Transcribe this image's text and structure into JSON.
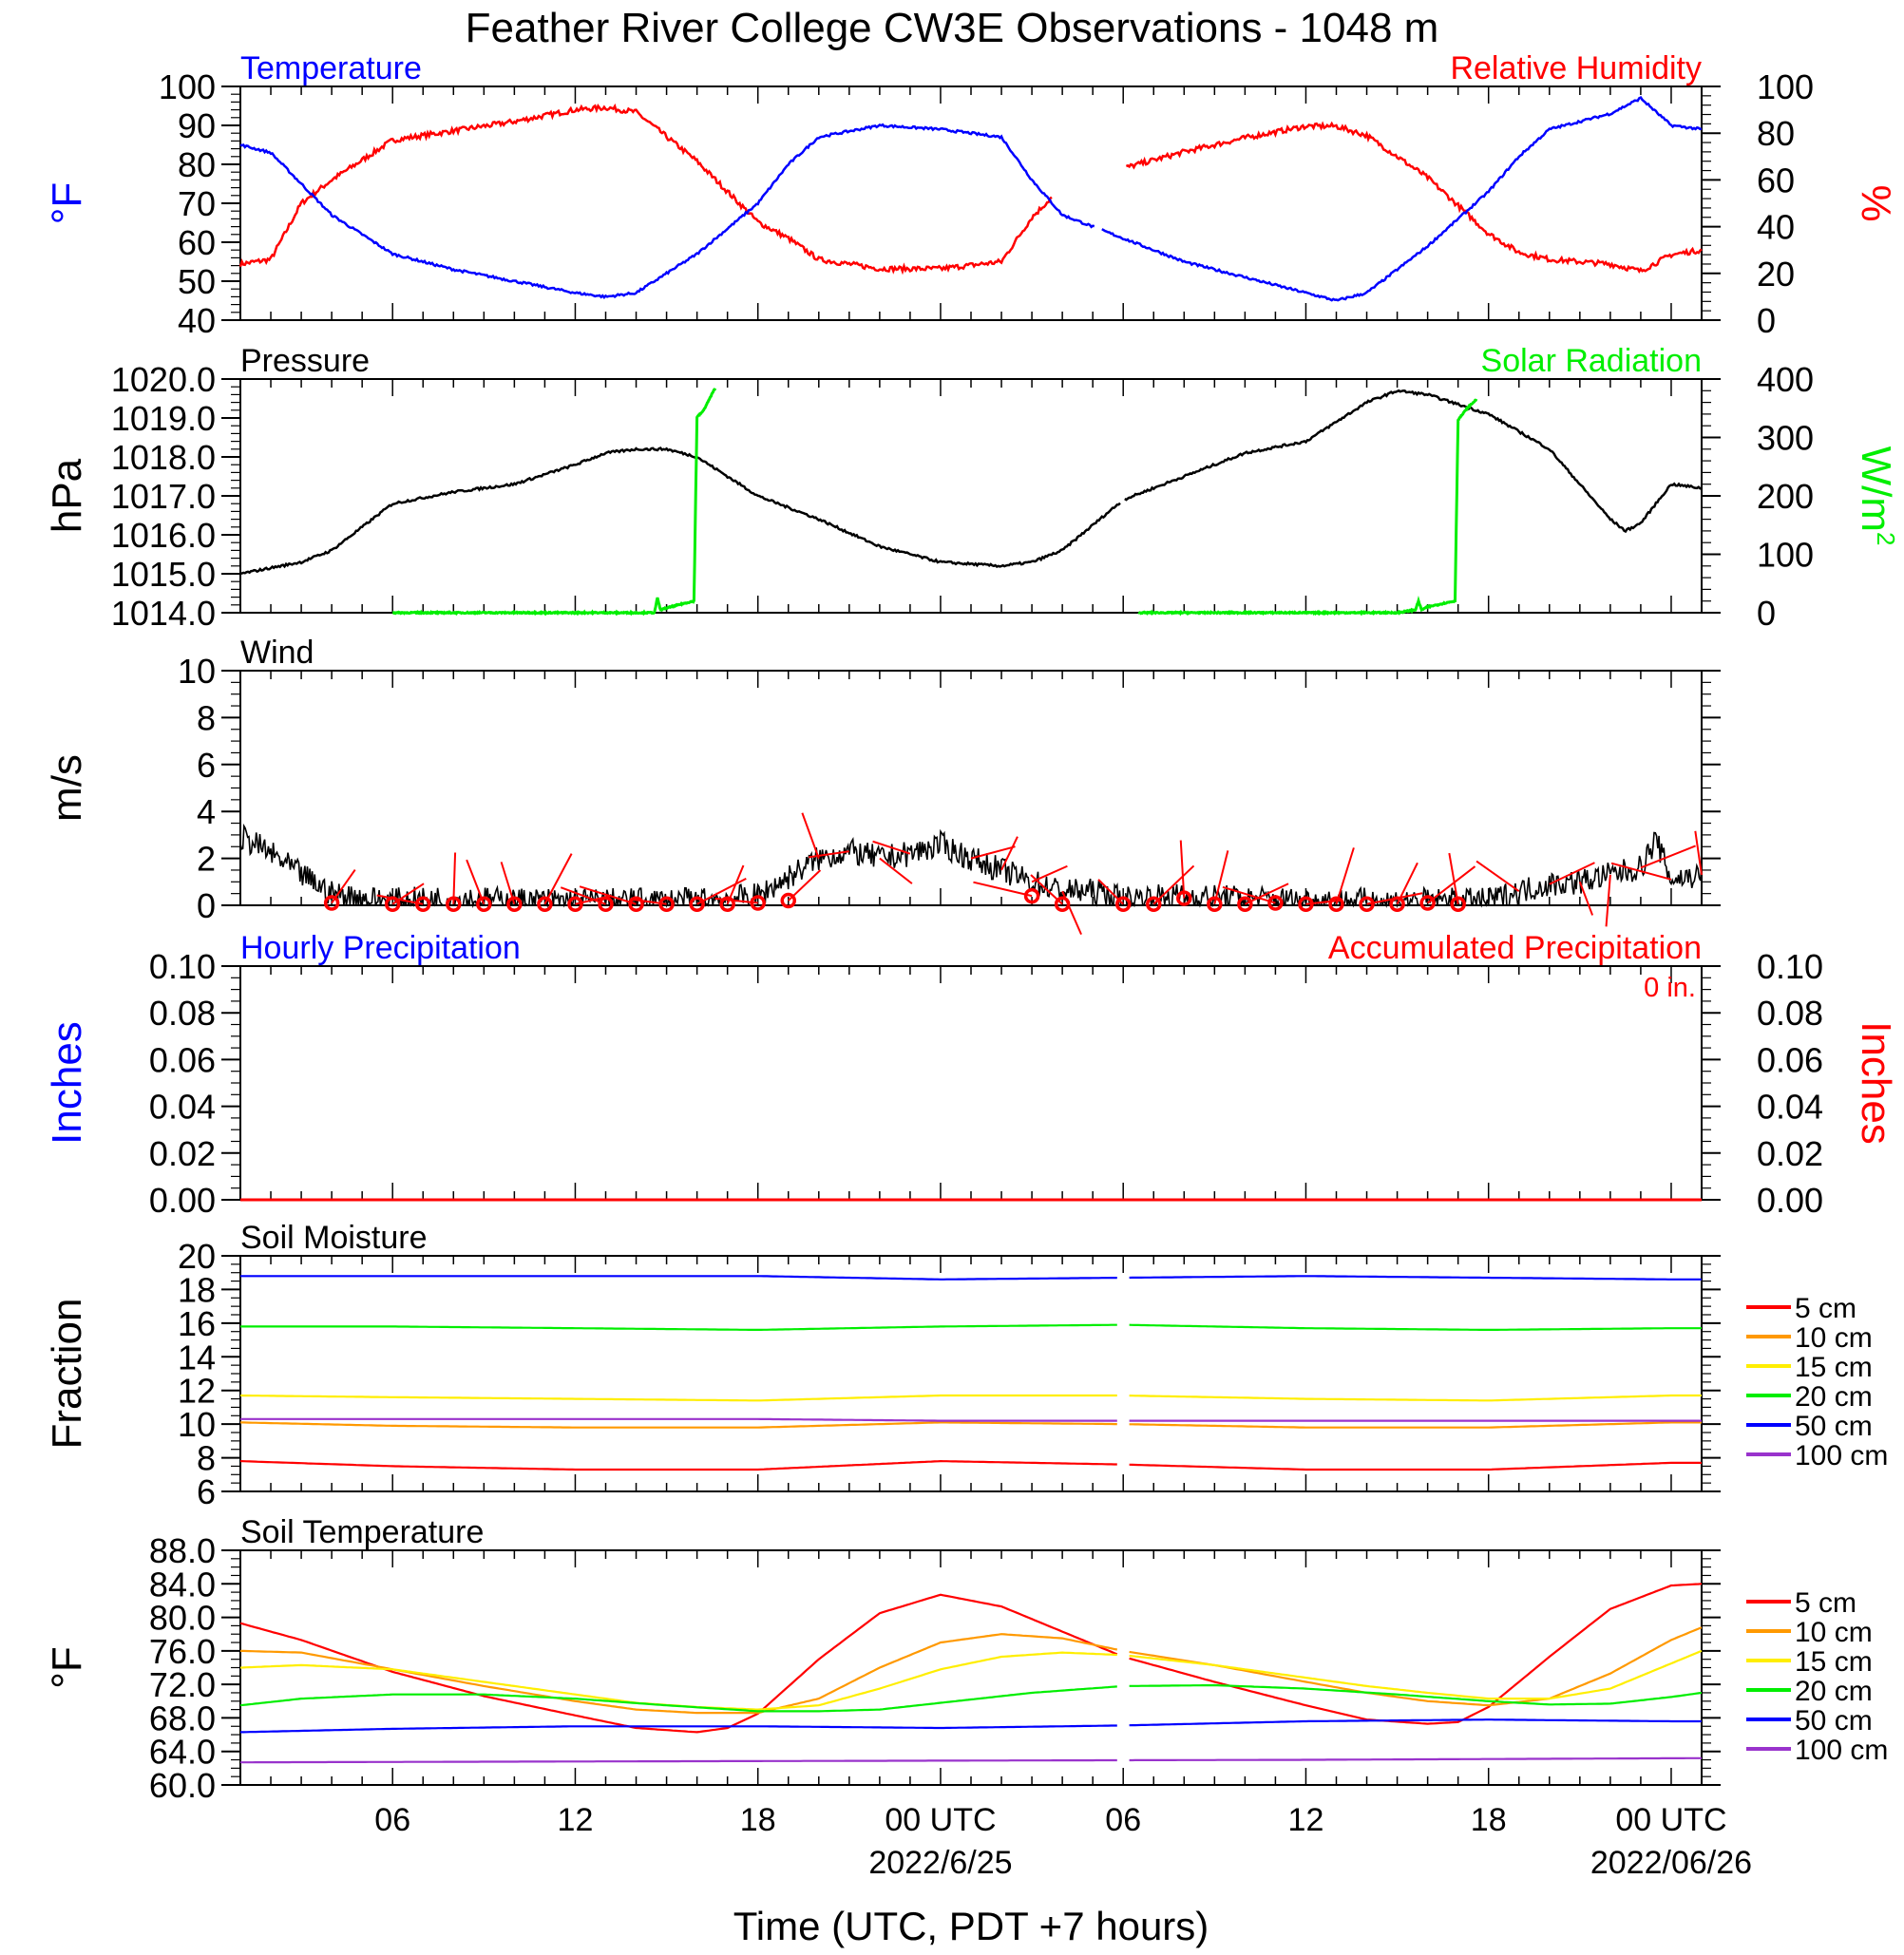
{
  "title": "Feather River College CW3E Observations - 1048 m",
  "xlabel": "Time (UTC, PDT +7 hours)",
  "x_ticks": [
    {
      "hour": 6,
      "label": "06",
      "date": ""
    },
    {
      "hour": 12,
      "label": "12",
      "date": ""
    },
    {
      "hour": 18,
      "label": "18",
      "date": ""
    },
    {
      "hour": 24,
      "label": "00 UTC",
      "date": "2022/6/25"
    },
    {
      "hour": 30,
      "label": "06",
      "date": ""
    },
    {
      "hour": 36,
      "label": "12",
      "date": ""
    },
    {
      "hour": 42,
      "label": "18",
      "date": ""
    },
    {
      "hour": 48,
      "label": "00 UTC",
      "date": "2022/06/26"
    }
  ],
  "chart_data": [
    {
      "type": "line",
      "panel": "temperature_rh",
      "title_left": "Temperature",
      "title_right": "Relative Humidity",
      "ylabel_left": "°F",
      "ylabel_right": "%",
      "ylim_left": [
        40,
        100
      ],
      "ylim_right": [
        0,
        100
      ],
      "yticks_left": [
        "100",
        "90",
        "80",
        "70",
        "60",
        "50",
        "40"
      ],
      "yticks_right": [
        "100",
        "80",
        "60",
        "40",
        "20",
        "0"
      ],
      "colors": {
        "left": "#0000ff",
        "right": "#ff0000"
      },
      "series": [
        {
          "name": "Temperature",
          "axis": "left",
          "x": [
            1,
            2,
            3,
            4,
            6,
            8,
            10,
            12,
            13,
            14,
            16,
            18,
            19,
            20,
            22,
            24,
            26,
            27,
            28,
            30,
            32,
            34,
            36,
            37,
            38,
            40,
            42,
            43,
            44,
            46,
            47,
            48,
            49
          ],
          "y": [
            85,
            83,
            75,
            67,
            57,
            53,
            50,
            47,
            46,
            47,
            57,
            70,
            80,
            87,
            90,
            89,
            87,
            76,
            67,
            61,
            55,
            51,
            47,
            45,
            47,
            59,
            73,
            82,
            89,
            93,
            97,
            90,
            89
          ]
        },
        {
          "name": "Relative Humidity",
          "axis": "right",
          "x": [
            1,
            2,
            3,
            4,
            6,
            8,
            10,
            12,
            13,
            14,
            16,
            18,
            19,
            20,
            22,
            24,
            26,
            27,
            28,
            30,
            32,
            34,
            36,
            37,
            38,
            40,
            42,
            43,
            44,
            46,
            47,
            48,
            49
          ],
          "y": [
            24,
            26,
            50,
            60,
            77,
            81,
            85,
            90,
            91,
            89,
            68,
            42,
            35,
            26,
            22,
            22,
            25,
            44,
            57,
            65,
            72,
            78,
            83,
            83,
            79,
            61,
            37,
            29,
            26,
            24,
            21,
            28,
            30
          ]
        }
      ]
    },
    {
      "type": "line",
      "panel": "pressure_solar",
      "title_left": "Pressure",
      "title_right": "Solar Radiation",
      "ylabel_left": "hPa",
      "ylabel_right": "W/m",
      "ylabel_right_sup": "2",
      "ylim_left": [
        1014,
        1020
      ],
      "ylim_right": [
        0,
        400
      ],
      "yticks_left": [
        "1020.0",
        "1019.0",
        "1018.0",
        "1017.0",
        "1016.0",
        "1015.0",
        "1014.0"
      ],
      "yticks_right": [
        "400",
        "300",
        "200",
        "100",
        "0"
      ],
      "colors": {
        "left": "#000000",
        "right": "#00ee00"
      },
      "series": [
        {
          "name": "Pressure",
          "axis": "left",
          "x": [
            1,
            3,
            4,
            6,
            8,
            10,
            12,
            13,
            14,
            15,
            16,
            18,
            20,
            22,
            24,
            26,
            27,
            28,
            30,
            32,
            34,
            36,
            37,
            38,
            39,
            40,
            42,
            44,
            45,
            46,
            46.5,
            47,
            48,
            49
          ],
          "y": [
            1015.0,
            1015.3,
            1015.6,
            1016.8,
            1017.1,
            1017.3,
            1017.8,
            1018.1,
            1018.2,
            1018.2,
            1018.0,
            1017.0,
            1016.4,
            1015.7,
            1015.3,
            1015.2,
            1015.3,
            1015.6,
            1016.9,
            1017.5,
            1018.1,
            1018.4,
            1018.9,
            1019.4,
            1019.7,
            1019.6,
            1019.1,
            1018.2,
            1017.3,
            1016.4,
            1016.1,
            1016.3,
            1017.3,
            1017.2
          ]
        },
        {
          "name": "Solar Radiation",
          "axis": "right",
          "x": [
            6,
            8,
            10,
            12,
            13,
            14,
            14.6,
            14.7,
            14.8,
            15,
            15.5,
            15.9,
            16.0,
            16.2,
            16.6,
            30.5,
            32,
            36,
            38,
            39,
            39.6,
            39.7,
            39.8,
            40,
            40.7,
            40.9,
            41.0,
            41.3,
            41.6
          ],
          "y": [
            0,
            0,
            0,
            0,
            0,
            0,
            0,
            25,
            5,
            8,
            15,
            20,
            335,
            345,
            385,
            0,
            0,
            0,
            0,
            0,
            5,
            20,
            5,
            10,
            18,
            20,
            330,
            350,
            365
          ]
        }
      ]
    },
    {
      "type": "line",
      "panel": "wind",
      "title_left": "Wind",
      "ylabel_left": "m/s",
      "ylim_left": [
        0,
        10
      ],
      "yticks_left": [
        "10",
        "8",
        "6",
        "4",
        "2",
        "0"
      ],
      "colors": {
        "left": "#000000",
        "marker": "#ff0000"
      },
      "series": [
        {
          "name": "Wind Speed",
          "axis": "left",
          "x": [
            1,
            1.5,
            2,
            3,
            4,
            5,
            6,
            8,
            10,
            12,
            14,
            16,
            18,
            19,
            20,
            21,
            22,
            23,
            24,
            25,
            26,
            27,
            28,
            29,
            30,
            32,
            34,
            36,
            38,
            40,
            42,
            43,
            44,
            45,
            46,
            47,
            47.5,
            48,
            49
          ],
          "y": [
            2.9,
            2.6,
            2.2,
            1.3,
            0.5,
            0.3,
            0.2,
            0.3,
            0.2,
            0.2,
            0.2,
            0.2,
            0.4,
            1.2,
            2.0,
            2.3,
            2.0,
            2.2,
            2.6,
            2.0,
            1.5,
            1.0,
            0.6,
            0.6,
            0.3,
            0.4,
            0.3,
            0.2,
            0.2,
            0.2,
            0.2,
            0.6,
            0.9,
            1.0,
            1.3,
            1.6,
            2.8,
            1.1,
            1.3
          ]
        },
        {
          "name": "Hourly Speed",
          "axis": "left",
          "x": [
            4,
            6,
            7,
            8,
            9,
            10,
            11,
            12,
            13,
            14,
            15,
            16,
            17,
            18,
            19,
            27,
            28,
            30,
            31,
            32,
            33,
            34,
            35,
            36,
            37,
            38,
            39,
            40,
            41
          ],
          "y": [
            0.1,
            0.05,
            0.05,
            0.05,
            0.05,
            0.05,
            0.05,
            0.05,
            0.05,
            0.05,
            0.05,
            0.05,
            0.05,
            0.1,
            0.2,
            0.4,
            0.05,
            0.05,
            0.05,
            0.3,
            0.05,
            0.05,
            0.1,
            0.05,
            0.05,
            0.05,
            0.05,
            0.1,
            0.05
          ]
        }
      ]
    },
    {
      "type": "bar",
      "panel": "precipitation",
      "title_left": "Hourly Precipitation",
      "title_right": "Accumulated Precipitation",
      "annotation": "0 in.",
      "ylabel_left": "Inches",
      "ylabel_right": "Inches",
      "ylim_left": [
        0,
        0.1
      ],
      "ylim_right": [
        0,
        0.1
      ],
      "yticks_left": [
        "0.10",
        "0.08",
        "0.06",
        "0.04",
        "0.02",
        "0.00"
      ],
      "yticks_right": [
        "0.10",
        "0.08",
        "0.06",
        "0.04",
        "0.02",
        "0.00"
      ],
      "colors": {
        "left": "#0000ff",
        "right": "#ff0000"
      },
      "series": [
        {
          "name": "Accumulated Precipitation",
          "axis": "right",
          "x": [
            1,
            49
          ],
          "y": [
            0,
            0
          ]
        }
      ]
    },
    {
      "type": "line",
      "panel": "soil_moisture",
      "title_left": "Soil Moisture",
      "ylabel_left": "Fraction",
      "ylim_left": [
        6,
        20
      ],
      "yticks_left": [
        "20",
        "18",
        "16",
        "14",
        "12",
        "10",
        "8",
        "6"
      ],
      "legend": [
        "5 cm",
        "10 cm",
        "15 cm",
        "20 cm",
        "50 cm",
        "100 cm"
      ],
      "colors": {
        "5 cm": "#ff0000",
        "10 cm": "#ff9900",
        "15 cm": "#ffee00",
        "20 cm": "#00ee00",
        "50 cm": "#0000ff",
        "100 cm": "#9933cc"
      },
      "series": [
        {
          "name": "5 cm",
          "axis": "left",
          "x": [
            1,
            6,
            12,
            18,
            24,
            30,
            36,
            42,
            48,
            49
          ],
          "y": [
            7.8,
            7.5,
            7.3,
            7.3,
            7.8,
            7.6,
            7.3,
            7.3,
            7.7,
            7.7
          ]
        },
        {
          "name": "10 cm",
          "axis": "left",
          "x": [
            1,
            6,
            12,
            18,
            24,
            30,
            36,
            42,
            48,
            49
          ],
          "y": [
            10.1,
            9.9,
            9.8,
            9.8,
            10.1,
            10.0,
            9.8,
            9.8,
            10.1,
            10.1
          ]
        },
        {
          "name": "15 cm",
          "axis": "left",
          "x": [
            1,
            6,
            12,
            18,
            24,
            30,
            36,
            42,
            48,
            49
          ],
          "y": [
            11.7,
            11.6,
            11.5,
            11.4,
            11.7,
            11.7,
            11.5,
            11.4,
            11.7,
            11.7
          ]
        },
        {
          "name": "20 cm",
          "axis": "left",
          "x": [
            1,
            6,
            12,
            18,
            24,
            30,
            36,
            42,
            48,
            49
          ],
          "y": [
            15.8,
            15.8,
            15.7,
            15.6,
            15.8,
            15.9,
            15.7,
            15.6,
            15.7,
            15.7
          ]
        },
        {
          "name": "50 cm",
          "axis": "left",
          "x": [
            1,
            6,
            12,
            18,
            24,
            30,
            36,
            42,
            48,
            49
          ],
          "y": [
            18.8,
            18.8,
            18.8,
            18.8,
            18.6,
            18.7,
            18.8,
            18.7,
            18.6,
            18.6
          ]
        },
        {
          "name": "100 cm",
          "axis": "left",
          "x": [
            1,
            6,
            12,
            18,
            24,
            30,
            36,
            42,
            48,
            49
          ],
          "y": [
            10.3,
            10.3,
            10.3,
            10.3,
            10.2,
            10.2,
            10.2,
            10.2,
            10.2,
            10.2
          ]
        }
      ]
    },
    {
      "type": "line",
      "panel": "soil_temperature",
      "title_left": "Soil Temperature",
      "ylabel_left": "°F",
      "ylim_left": [
        60,
        88
      ],
      "yticks_left": [
        "88.0",
        "84.0",
        "80.0",
        "76.0",
        "72.0",
        "68.0",
        "64.0",
        "60.0"
      ],
      "legend": [
        "5 cm",
        "10 cm",
        "15 cm",
        "20 cm",
        "50 cm",
        "100 cm"
      ],
      "colors": {
        "5 cm": "#ff0000",
        "10 cm": "#ff9900",
        "15 cm": "#ffee00",
        "20 cm": "#00ee00",
        "50 cm": "#0000ff",
        "100 cm": "#9933cc"
      },
      "series": [
        {
          "name": "5 cm",
          "axis": "left",
          "x": [
            1,
            3,
            6,
            9,
            12,
            14,
            16,
            17,
            18,
            20,
            22,
            24,
            26,
            28,
            30,
            33,
            36,
            38,
            40,
            41,
            42,
            44,
            46,
            48,
            49
          ],
          "y": [
            79.3,
            77.3,
            73.5,
            70.6,
            68.3,
            66.8,
            66.3,
            66.8,
            68.5,
            75.0,
            80.5,
            82.7,
            81.3,
            78.3,
            75.3,
            72.3,
            69.5,
            67.8,
            67.3,
            67.5,
            69.3,
            75.3,
            81.0,
            83.8,
            84.0
          ]
        },
        {
          "name": "10 cm",
          "axis": "left",
          "x": [
            1,
            3,
            6,
            9,
            12,
            14,
            16,
            18,
            20,
            22,
            24,
            26,
            28,
            30,
            33,
            36,
            38,
            40,
            42,
            44,
            46,
            48,
            49
          ],
          "y": [
            76.0,
            75.8,
            73.8,
            71.8,
            70.0,
            69.0,
            68.6,
            68.6,
            70.3,
            74.0,
            77.0,
            78.0,
            77.5,
            76.0,
            74.3,
            72.3,
            71.0,
            70.0,
            69.5,
            70.3,
            73.3,
            77.3,
            78.8
          ]
        },
        {
          "name": "15 cm",
          "axis": "left",
          "x": [
            1,
            3,
            6,
            9,
            12,
            14,
            16,
            18,
            20,
            22,
            24,
            26,
            28,
            30,
            33,
            36,
            38,
            40,
            42,
            44,
            46,
            48,
            49
          ],
          "y": [
            74.0,
            74.3,
            73.8,
            72.3,
            70.8,
            69.8,
            69.3,
            69.0,
            69.5,
            71.5,
            73.8,
            75.3,
            75.8,
            75.5,
            74.3,
            72.8,
            71.8,
            71.0,
            70.3,
            70.3,
            71.5,
            74.5,
            76.0
          ]
        },
        {
          "name": "20 cm",
          "axis": "left",
          "x": [
            1,
            3,
            6,
            9,
            12,
            15,
            18,
            20,
            22,
            24,
            27,
            30,
            33,
            36,
            39,
            42,
            44,
            46,
            48,
            49
          ],
          "y": [
            69.5,
            70.3,
            70.8,
            70.8,
            70.3,
            69.5,
            68.8,
            68.8,
            69.0,
            69.8,
            71.0,
            71.8,
            71.9,
            71.5,
            70.8,
            70.0,
            69.6,
            69.7,
            70.5,
            71.0
          ]
        },
        {
          "name": "50 cm",
          "axis": "left",
          "x": [
            1,
            6,
            12,
            18,
            24,
            30,
            36,
            42,
            48,
            49
          ],
          "y": [
            66.3,
            66.7,
            67.0,
            67.0,
            66.8,
            67.1,
            67.6,
            67.8,
            67.6,
            67.6
          ]
        },
        {
          "name": "100 cm",
          "axis": "left",
          "x": [
            1,
            12,
            24,
            36,
            49
          ],
          "y": [
            62.7,
            62.8,
            62.9,
            63.0,
            63.2
          ]
        }
      ]
    }
  ]
}
